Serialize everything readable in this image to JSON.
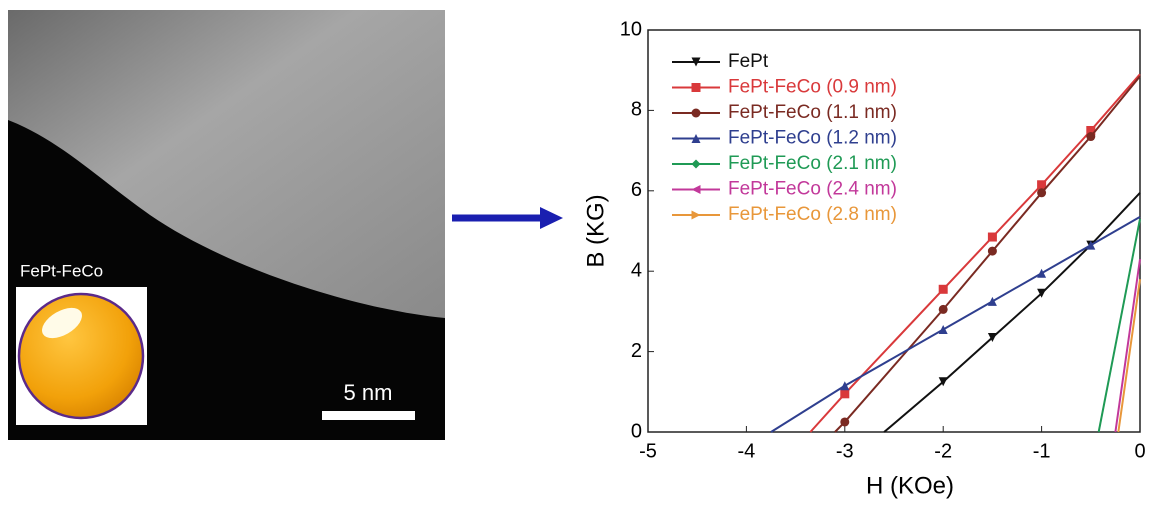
{
  "image": {
    "label": "FePt-FeCo",
    "scale_bar": "5 nm"
  },
  "chart_data": {
    "type": "line",
    "xlabel": "H (KOe)",
    "ylabel": "B (KG)",
    "xlim": [
      -5,
      0
    ],
    "xticks": [
      -5,
      -4,
      -3,
      -2,
      -1,
      0
    ],
    "ylim": [
      0,
      10
    ],
    "yticks": [
      0,
      2,
      4,
      6,
      8,
      10
    ],
    "legend": "top-left",
    "series": [
      {
        "name": "FePt",
        "color": "#111111",
        "marker": "triangle-down",
        "x": [
          -2.6,
          -2,
          -1.5,
          -1,
          -0.5,
          0
        ],
        "values": [
          0,
          1.25,
          2.35,
          3.45,
          4.65,
          5.95
        ]
      },
      {
        "name": "FePt-FeCo (0.9 nm)",
        "color": "#d9393b",
        "marker": "square",
        "x": [
          -3.35,
          -3,
          -2,
          -1.5,
          -1,
          -0.5,
          0
        ],
        "values": [
          0,
          0.95,
          3.55,
          4.85,
          6.15,
          7.5,
          8.9
        ]
      },
      {
        "name": "FePt-FeCo (1.1 nm)",
        "color": "#7a2a22",
        "marker": "circle",
        "x": [
          -3.1,
          -3,
          -2,
          -1.5,
          -1,
          -0.5,
          0
        ],
        "values": [
          0,
          0.25,
          3.05,
          4.5,
          5.95,
          7.35,
          8.85
        ]
      },
      {
        "name": "FePt-FeCo (1.2 nm)",
        "color": "#2f3f8f",
        "marker": "triangle-up",
        "x": [
          -3.75,
          -3,
          -2,
          -1.5,
          -1,
          -0.5,
          0
        ],
        "values": [
          0,
          1.15,
          2.55,
          3.25,
          3.95,
          4.65,
          5.35
        ]
      },
      {
        "name": "FePt-FeCo (2.1 nm)",
        "color": "#1f9a55",
        "marker": "diamond",
        "x": [
          -0.42,
          0
        ],
        "values": [
          0,
          5.3
        ]
      },
      {
        "name": "FePt-FeCo (2.4 nm)",
        "color": "#c2389a",
        "marker": "triangle-left",
        "x": [
          -0.25,
          0
        ],
        "values": [
          0,
          4.3
        ]
      },
      {
        "name": "FePt-FeCo (2.8 nm)",
        "color": "#e8973a",
        "marker": "triangle-right",
        "x": [
          -0.22,
          0
        ],
        "values": [
          0,
          3.8
        ]
      }
    ]
  }
}
